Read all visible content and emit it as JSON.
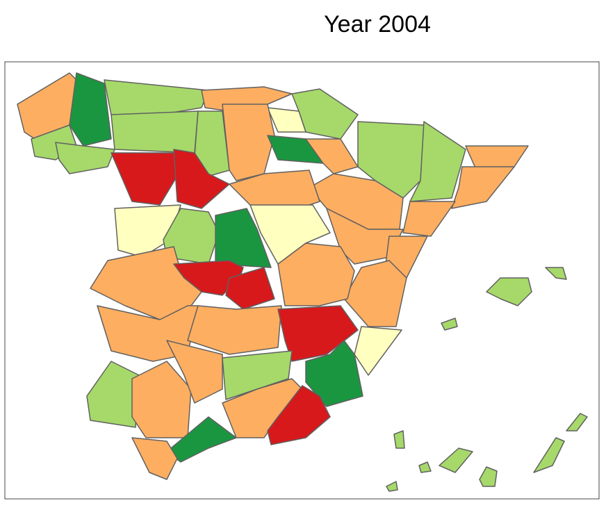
{
  "title": "Year 2004"
}
